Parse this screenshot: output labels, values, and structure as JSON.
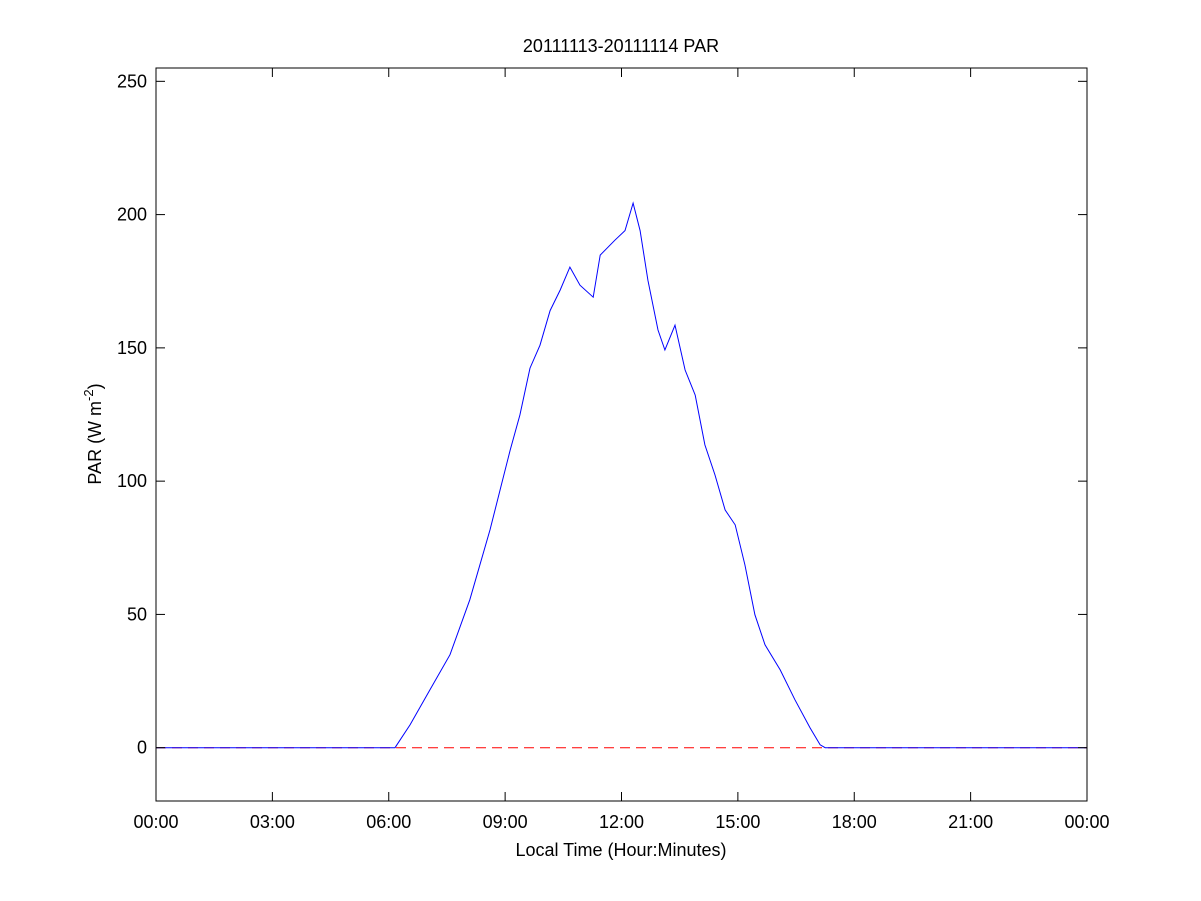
{
  "chart_data": {
    "type": "line",
    "title": "20111113-20111114 PAR",
    "xlabel": "Local Time (Hour:Minutes)",
    "ylabel_main": "PAR (W m",
    "ylabel_sup": "-2",
    "ylabel_end": ")",
    "xlim": [
      0,
      24
    ],
    "ylim": [
      -20,
      255
    ],
    "xticks": [
      0,
      3,
      6,
      9,
      12,
      15,
      18,
      21,
      24
    ],
    "xtick_labels": [
      "00:00",
      "03:00",
      "06:00",
      "09:00",
      "12:00",
      "15:00",
      "18:00",
      "21:00",
      "00:00"
    ],
    "yticks": [
      0,
      50,
      100,
      150,
      200,
      250
    ],
    "ytick_labels": [
      "0",
      "50",
      "100",
      "150",
      "200",
      "250"
    ],
    "grid": false,
    "series": [
      {
        "color": "#0000ff",
        "style": "solid",
        "x": [
          0,
          6.16,
          6.55,
          7.06,
          7.58,
          8.09,
          8.61,
          8.87,
          9.13,
          9.38,
          9.64,
          9.9,
          10.16,
          10.42,
          10.67,
          10.93,
          11.27,
          11.45,
          11.83,
          12.09,
          12.3,
          12.48,
          12.68,
          12.94,
          13.12,
          13.38,
          13.64,
          13.9,
          14.15,
          14.41,
          14.67,
          14.93,
          15.18,
          15.44,
          15.7,
          16.09,
          16.47,
          16.86,
          17.12,
          17.25,
          24
        ],
        "y": [
          0,
          0,
          8.6,
          21.7,
          34.9,
          55.5,
          81.7,
          96.7,
          111.7,
          124.8,
          142.4,
          151,
          164,
          171.7,
          180.3,
          173.5,
          169,
          184.8,
          190.4,
          194,
          204.3,
          194,
          175.4,
          156.7,
          149.2,
          158.5,
          141.7,
          132.3,
          113.6,
          102.3,
          89.2,
          83.6,
          68.6,
          49.9,
          38.6,
          29.2,
          18,
          7.5,
          1.1,
          0,
          0
        ]
      },
      {
        "color": "#ff0000",
        "style": "dashed",
        "x": [
          0,
          24
        ],
        "y": [
          0,
          0
        ]
      }
    ]
  }
}
